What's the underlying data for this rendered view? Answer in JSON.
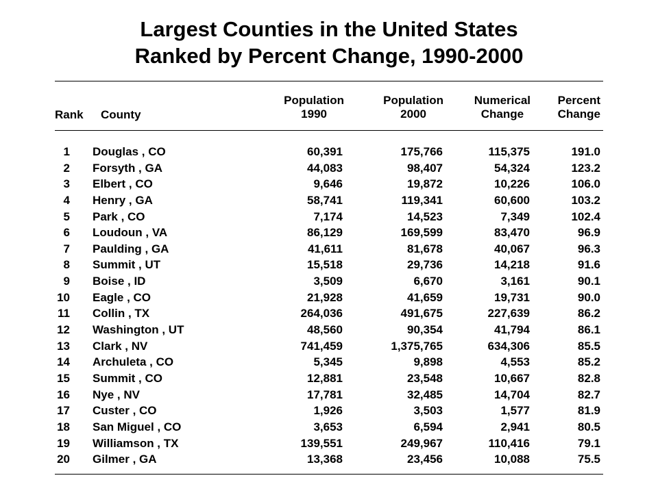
{
  "title_line1": "Largest Counties in the United States",
  "title_line2": "Ranked by Percent Change, 1990-2000",
  "headers": {
    "rank": "Rank",
    "county": "County",
    "pop1990": [
      "Population",
      "1990"
    ],
    "pop2000": [
      "Population",
      "2000"
    ],
    "numerical": [
      "Numerical",
      "Change"
    ],
    "percent": [
      "Percent",
      "Change"
    ]
  },
  "chart_data": {
    "type": "table",
    "columns": [
      "Rank",
      "County",
      "Population 1990",
      "Population 2000",
      "Numerical Change",
      "Percent Change"
    ],
    "rows": [
      [
        "1",
        "Douglas , CO",
        "60,391",
        "175,766",
        "115,375",
        "191.0"
      ],
      [
        "2",
        "Forsyth , GA",
        "44,083",
        "98,407",
        "54,324",
        "123.2"
      ],
      [
        "3",
        "Elbert , CO",
        "9,646",
        "19,872",
        "10,226",
        "106.0"
      ],
      [
        "4",
        "Henry , GA",
        "58,741",
        "119,341",
        "60,600",
        "103.2"
      ],
      [
        "5",
        "Park , CO",
        "7,174",
        "14,523",
        "7,349",
        "102.4"
      ],
      [
        "6",
        "Loudoun , VA",
        "86,129",
        "169,599",
        "83,470",
        "96.9"
      ],
      [
        "7",
        "Paulding , GA",
        "41,611",
        "81,678",
        "40,067",
        "96.3"
      ],
      [
        "8",
        "Summit , UT",
        "15,518",
        "29,736",
        "14,218",
        "91.6"
      ],
      [
        "9",
        "Boise , ID",
        "3,509",
        "6,670",
        "3,161",
        "90.1"
      ],
      [
        "10",
        "Eagle , CO",
        "21,928",
        "41,659",
        "19,731",
        "90.0"
      ],
      [
        "11",
        "Collin , TX",
        "264,036",
        "491,675",
        "227,639",
        "86.2"
      ],
      [
        "12",
        "Washington , UT",
        "48,560",
        "90,354",
        "41,794",
        "86.1"
      ],
      [
        "13",
        "Clark , NV",
        "741,459",
        "1,375,765",
        "634,306",
        "85.5"
      ],
      [
        "14",
        "Archuleta , CO",
        "5,345",
        "9,898",
        "4,553",
        "85.2"
      ],
      [
        "15",
        "Summit , CO",
        "12,881",
        "23,548",
        "10,667",
        "82.8"
      ],
      [
        "16",
        "Nye , NV",
        "17,781",
        "32,485",
        "14,704",
        "82.7"
      ],
      [
        "17",
        "Custer , CO",
        "1,926",
        "3,503",
        "1,577",
        "81.9"
      ],
      [
        "18",
        "San Miguel , CO",
        "3,653",
        "6,594",
        "2,941",
        "80.5"
      ],
      [
        "19",
        "Williamson , TX",
        "139,551",
        "249,967",
        "110,416",
        "79.1"
      ],
      [
        "20",
        "Gilmer , GA",
        "13,368",
        "23,456",
        "10,088",
        "75.5"
      ]
    ]
  }
}
